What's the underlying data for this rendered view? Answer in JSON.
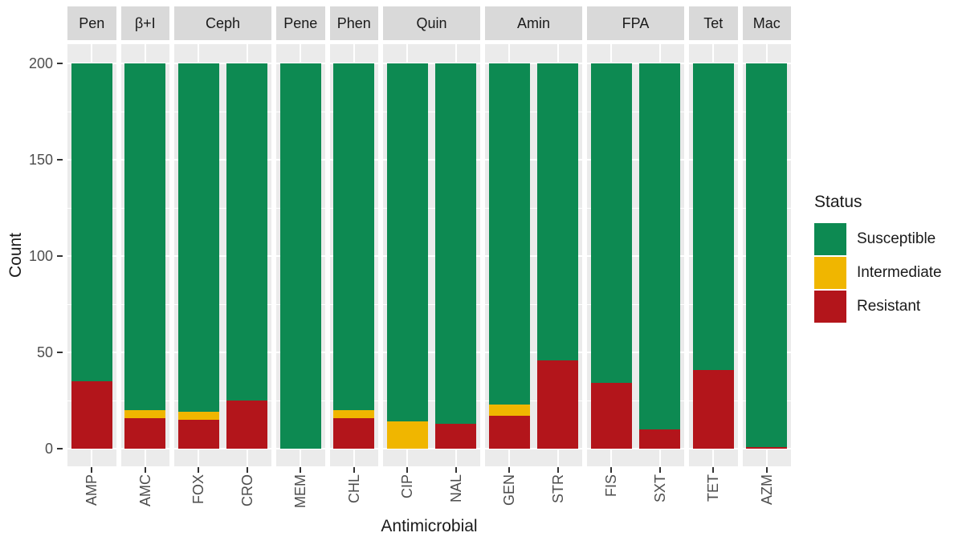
{
  "chart_data": {
    "type": "bar",
    "stacked": true,
    "title": "",
    "xlabel": "Antimicrobial",
    "ylabel": "Count",
    "ylim": [
      0,
      200
    ],
    "yticks": [
      0,
      50,
      100,
      150,
      200
    ],
    "yticks_minor": [
      25,
      75,
      125,
      175
    ],
    "grid": "white-on-gray-panels",
    "legend_title": "Status",
    "legend_position": "right",
    "stack_order_bottom_to_top": [
      "Resistant",
      "Intermediate",
      "Susceptible"
    ],
    "series": [
      {
        "name": "Susceptible",
        "color": "#0d8a52"
      },
      {
        "name": "Intermediate",
        "color": "#f0b600"
      },
      {
        "name": "Resistant",
        "color": "#b3151b"
      }
    ],
    "facets": [
      {
        "label": "Pen",
        "bars": [
          {
            "label": "AMP",
            "Susceptible": 165,
            "Intermediate": 0,
            "Resistant": 35
          }
        ]
      },
      {
        "label": "β+I",
        "bars": [
          {
            "label": "AMC",
            "Susceptible": 180,
            "Intermediate": 4,
            "Resistant": 16
          }
        ]
      },
      {
        "label": "Ceph",
        "bars": [
          {
            "label": "FOX",
            "Susceptible": 181,
            "Intermediate": 4,
            "Resistant": 15
          },
          {
            "label": "CRO",
            "Susceptible": 175,
            "Intermediate": 0,
            "Resistant": 25
          }
        ]
      },
      {
        "label": "Pene",
        "bars": [
          {
            "label": "MEM",
            "Susceptible": 200,
            "Intermediate": 0,
            "Resistant": 0
          }
        ]
      },
      {
        "label": "Phen",
        "bars": [
          {
            "label": "CHL",
            "Susceptible": 180,
            "Intermediate": 4,
            "Resistant": 16
          }
        ]
      },
      {
        "label": "Quin",
        "bars": [
          {
            "label": "CIP",
            "Susceptible": 186,
            "Intermediate": 14,
            "Resistant": 0
          },
          {
            "label": "NAL",
            "Susceptible": 187,
            "Intermediate": 0,
            "Resistant": 13
          }
        ]
      },
      {
        "label": "Amin",
        "bars": [
          {
            "label": "GEN",
            "Susceptible": 177,
            "Intermediate": 6,
            "Resistant": 17
          },
          {
            "label": "STR",
            "Susceptible": 154,
            "Intermediate": 0,
            "Resistant": 46
          }
        ]
      },
      {
        "label": "FPA",
        "bars": [
          {
            "label": "FIS",
            "Susceptible": 166,
            "Intermediate": 0,
            "Resistant": 34
          },
          {
            "label": "SXT",
            "Susceptible": 190,
            "Intermediate": 0,
            "Resistant": 10
          }
        ]
      },
      {
        "label": "Tet",
        "bars": [
          {
            "label": "TET",
            "Susceptible": 159,
            "Intermediate": 0,
            "Resistant": 41
          }
        ]
      },
      {
        "label": "Mac",
        "bars": [
          {
            "label": "AZM",
            "Susceptible": 199,
            "Intermediate": 0,
            "Resistant": 1
          }
        ]
      }
    ]
  },
  "colors": {
    "panel_background": "#ebebeb",
    "strip_background": "#d9d9d9",
    "gridline": "#ffffff",
    "tick_mark": "#333333",
    "tick_text": "#4d4d4d",
    "title_text": "#1a1a1a",
    "page_background": "#ffffff"
  }
}
